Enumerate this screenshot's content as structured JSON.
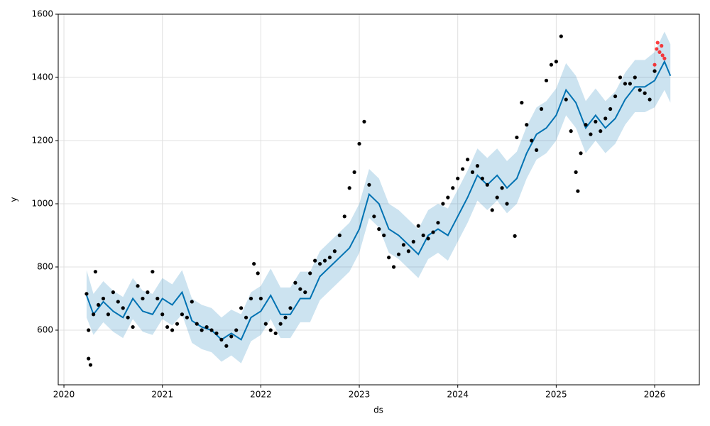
{
  "chart_data": {
    "type": "forecast",
    "x_label": "ds",
    "y_label": "y",
    "xlim": [
      2019.942,
      2026.454
    ],
    "ylim": [
      427,
      1600
    ],
    "xticks": [
      2020,
      2021,
      2022,
      2023,
      2024,
      2025,
      2026
    ],
    "yticks": [
      600,
      800,
      1000,
      1200,
      1400,
      1600
    ],
    "grid": true,
    "forecast": {
      "color": "#0072b2",
      "band_color": "#0072b2",
      "x": [
        2020.23,
        2020.3,
        2020.4,
        2020.5,
        2020.6,
        2020.7,
        2020.8,
        2020.9,
        2021.0,
        2021.1,
        2021.2,
        2021.3,
        2021.4,
        2021.5,
        2021.6,
        2021.7,
        2021.8,
        2021.9,
        2022.0,
        2022.1,
        2022.2,
        2022.3,
        2022.4,
        2022.5,
        2022.6,
        2022.7,
        2022.8,
        2022.9,
        2023.0,
        2023.1,
        2023.2,
        2023.3,
        2023.4,
        2023.5,
        2023.6,
        2023.7,
        2023.8,
        2023.9,
        2024.0,
        2024.1,
        2024.2,
        2024.3,
        2024.4,
        2024.5,
        2024.6,
        2024.7,
        2024.8,
        2024.9,
        2025.0,
        2025.1,
        2025.2,
        2025.3,
        2025.4,
        2025.5,
        2025.6,
        2025.7,
        2025.8,
        2025.9,
        2026.0,
        2026.1,
        2026.16
      ],
      "values": [
        710,
        650,
        690,
        660,
        640,
        700,
        660,
        650,
        700,
        680,
        720,
        630,
        610,
        600,
        570,
        590,
        570,
        640,
        660,
        710,
        650,
        650,
        700,
        700,
        770,
        800,
        830,
        860,
        920,
        1030,
        1000,
        920,
        900,
        870,
        840,
        900,
        920,
        900,
        960,
        1020,
        1090,
        1060,
        1090,
        1050,
        1080,
        1160,
        1220,
        1240,
        1280,
        1360,
        1320,
        1240,
        1280,
        1240,
        1270,
        1330,
        1370,
        1370,
        1390,
        1450,
        1405
      ],
      "upper": [
        790,
        715,
        755,
        725,
        705,
        765,
        725,
        715,
        765,
        745,
        790,
        700,
        680,
        670,
        640,
        665,
        650,
        720,
        740,
        795,
        735,
        735,
        785,
        785,
        850,
        880,
        910,
        940,
        1000,
        1110,
        1080,
        1000,
        980,
        950,
        920,
        980,
        1000,
        985,
        1045,
        1105,
        1175,
        1145,
        1175,
        1135,
        1165,
        1245,
        1305,
        1325,
        1365,
        1445,
        1405,
        1325,
        1365,
        1325,
        1355,
        1415,
        1455,
        1455,
        1480,
        1545,
        1505
      ],
      "lower": [
        640,
        585,
        625,
        595,
        575,
        635,
        595,
        585,
        635,
        615,
        650,
        560,
        540,
        530,
        500,
        520,
        495,
        565,
        585,
        635,
        575,
        575,
        625,
        625,
        695,
        725,
        755,
        785,
        845,
        955,
        925,
        845,
        825,
        795,
        765,
        825,
        845,
        820,
        880,
        940,
        1010,
        980,
        1010,
        970,
        1000,
        1080,
        1140,
        1160,
        1200,
        1280,
        1240,
        1160,
        1200,
        1160,
        1190,
        1250,
        1290,
        1290,
        1305,
        1360,
        1320
      ]
    },
    "observed": {
      "color": "#000000",
      "x": [
        2020.23,
        2020.25,
        2020.25,
        2020.27,
        2020.3,
        2020.32,
        2020.35,
        2020.4,
        2020.45,
        2020.5,
        2020.55,
        2020.6,
        2020.65,
        2020.7,
        2020.75,
        2020.8,
        2020.85,
        2020.9,
        2020.95,
        2021.0,
        2021.05,
        2021.1,
        2021.15,
        2021.2,
        2021.25,
        2021.3,
        2021.35,
        2021.4,
        2021.45,
        2021.5,
        2021.55,
        2021.6,
        2021.65,
        2021.7,
        2021.75,
        2021.8,
        2021.85,
        2021.9,
        2021.93,
        2021.97,
        2022.0,
        2022.05,
        2022.1,
        2022.15,
        2022.2,
        2022.25,
        2022.3,
        2022.35,
        2022.4,
        2022.45,
        2022.5,
        2022.55,
        2022.6,
        2022.65,
        2022.7,
        2022.75,
        2022.8,
        2022.85,
        2022.9,
        2022.95,
        2023.0,
        2023.05,
        2023.1,
        2023.15,
        2023.2,
        2023.25,
        2023.3,
        2023.35,
        2023.4,
        2023.45,
        2023.5,
        2023.55,
        2023.6,
        2023.65,
        2023.7,
        2023.75,
        2023.8,
        2023.85,
        2023.9,
        2023.95,
        2024.0,
        2024.05,
        2024.1,
        2024.15,
        2024.2,
        2024.25,
        2024.3,
        2024.35,
        2024.4,
        2024.45,
        2024.5,
        2024.58,
        2024.6,
        2024.65,
        2024.7,
        2024.75,
        2024.8,
        2024.85,
        2024.9,
        2024.95,
        2025.0,
        2025.05,
        2025.1,
        2025.15,
        2025.2,
        2025.22,
        2025.25,
        2025.3,
        2025.35,
        2025.4,
        2025.45,
        2025.5,
        2025.55,
        2025.6,
        2025.65,
        2025.7,
        2025.75,
        2025.8,
        2025.85,
        2025.9,
        2025.95,
        2026.0
      ],
      "values": [
        715,
        600,
        510,
        490,
        650,
        785,
        680,
        700,
        650,
        720,
        690,
        670,
        640,
        610,
        740,
        700,
        720,
        785,
        700,
        650,
        610,
        600,
        620,
        650,
        640,
        690,
        620,
        600,
        610,
        600,
        590,
        570,
        550,
        580,
        600,
        670,
        640,
        700,
        810,
        780,
        700,
        620,
        600,
        590,
        620,
        640,
        670,
        750,
        730,
        720,
        780,
        820,
        810,
        820,
        830,
        850,
        900,
        960,
        1050,
        1100,
        1190,
        1260,
        1060,
        960,
        920,
        900,
        830,
        800,
        840,
        870,
        850,
        880,
        930,
        900,
        890,
        910,
        940,
        1000,
        1020,
        1050,
        1080,
        1110,
        1140,
        1100,
        1120,
        1080,
        1060,
        980,
        1020,
        1050,
        1000,
        898,
        1210,
        1320,
        1250,
        1200,
        1170,
        1300,
        1390,
        1440,
        1450,
        1530,
        1330,
        1230,
        1100,
        1040,
        1160,
        1250,
        1220,
        1260,
        1230,
        1270,
        1300,
        1340,
        1400,
        1380,
        1380,
        1400,
        1360,
        1350,
        1330,
        1420
      ]
    },
    "recent": {
      "color": "#ff0000",
      "x": [
        2026.0,
        2026.02,
        2026.03,
        2026.05,
        2026.07,
        2026.08,
        2026.1
      ],
      "values": [
        1440,
        1490,
        1510,
        1480,
        1500,
        1470,
        1460
      ]
    }
  }
}
